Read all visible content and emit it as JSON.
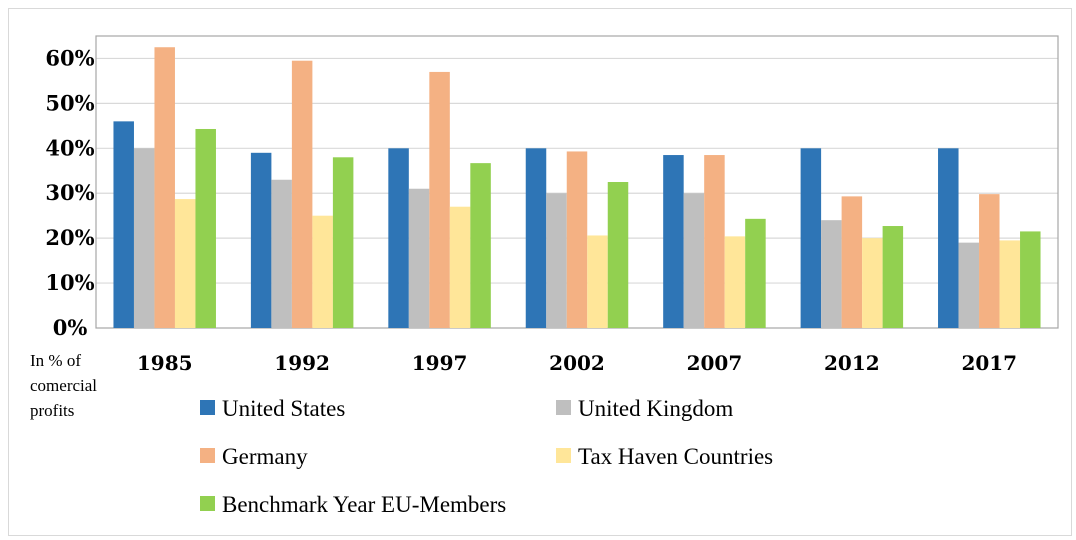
{
  "chart_data": {
    "type": "bar",
    "categories": [
      "1985",
      "1992",
      "1997",
      "2002",
      "2007",
      "2012",
      "2017"
    ],
    "series": [
      {
        "name": "United States",
        "color": "#2e75b6",
        "values": [
          46,
          39,
          40,
          40,
          38.5,
          40,
          40
        ]
      },
      {
        "name": "United Kingdom",
        "color": "#bfbfbf",
        "values": [
          40,
          33,
          31,
          30,
          30,
          24,
          19
        ]
      },
      {
        "name": "Germany",
        "color": "#f4b183",
        "values": [
          62.5,
          59.5,
          57,
          39.3,
          38.5,
          29.3,
          29.8
        ]
      },
      {
        "name": "Tax Haven Countries",
        "color": "#ffe699",
        "values": [
          28.7,
          25,
          27,
          20.6,
          20.4,
          20,
          19.5
        ]
      },
      {
        "name": "Benchmark Year EU-Members",
        "color": "#92d050",
        "values": [
          44.3,
          38,
          36.7,
          32.5,
          24.3,
          22.7,
          21.5
        ]
      }
    ],
    "y_ticks": [
      "0%",
      "10%",
      "20%",
      "30%",
      "40%",
      "50%",
      "60%"
    ],
    "ylim": [
      0,
      65
    ],
    "ylabel": "In % of comercial profits",
    "grid": true,
    "legend_position": "bottom"
  },
  "unit_note": [
    "In % of",
    "comercial",
    "profits"
  ]
}
